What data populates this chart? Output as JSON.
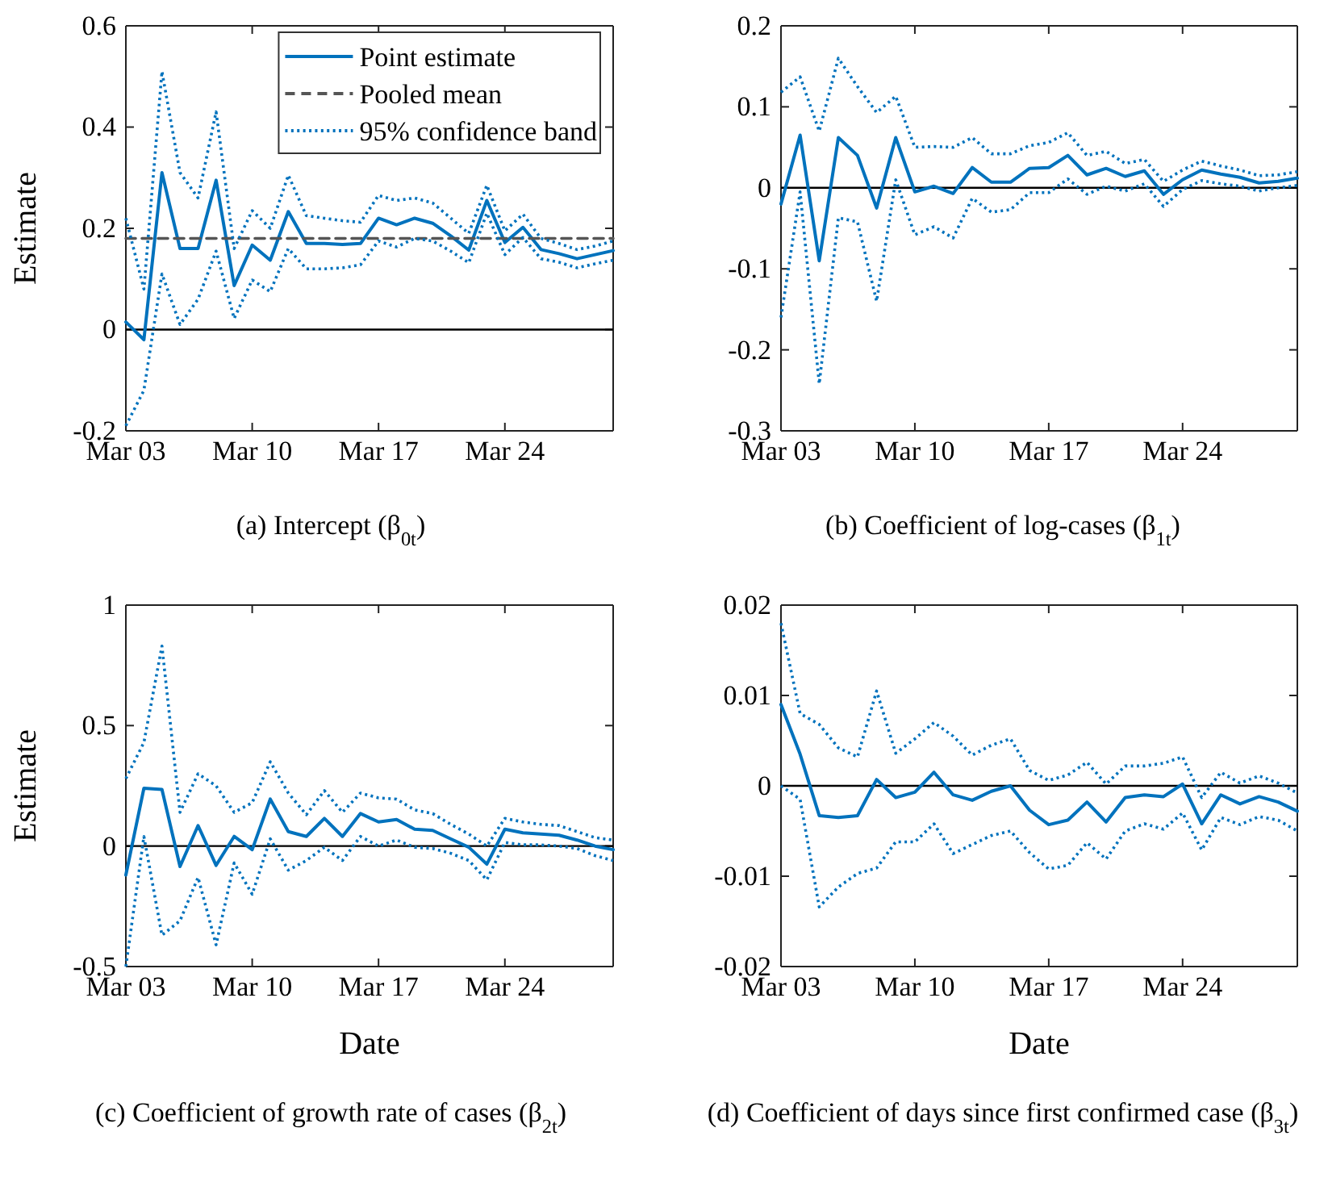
{
  "chart_data": [
    {
      "type": "line",
      "title": "(a) Intercept (β$_{0t}$)",
      "ylabel": "Estimate",
      "xlim": [
        "--03-03",
        "--03-30"
      ],
      "xticks": [
        {
          "value": "--03-03",
          "label": "Mar 03"
        },
        {
          "value": "--03-10",
          "label": "Mar 10"
        },
        {
          "value": "--03-17",
          "label": "Mar 17"
        },
        {
          "value": "--03-24",
          "label": "Mar 24"
        }
      ],
      "ylim": [
        -0.2,
        0.6
      ],
      "yticks": [
        {
          "value": -0.2,
          "label": "-0.2"
        },
        0,
        0.2,
        0.4,
        0.6
      ],
      "grid": false,
      "legend": "top right",
      "ref_lines": [
        {
          "axis": "y",
          "value": 0,
          "color": "#000000"
        }
      ],
      "x": [
        "--03-03",
        "--03-04",
        "--03-05",
        "--03-06",
        "--03-07",
        "--03-08",
        "--03-09",
        "--03-10",
        "--03-11",
        "--03-12",
        "--03-13",
        "--03-14",
        "--03-15",
        "--03-16",
        "--03-17",
        "--03-18",
        "--03-19",
        "--03-20",
        "--03-21",
        "--03-22",
        "--03-23",
        "--03-24",
        "--03-25",
        "--03-26",
        "--03-27",
        "--03-28",
        "--03-29",
        "--03-30"
      ],
      "series": [
        {
          "name": "Point estimate",
          "color": "#0072bd",
          "line_style": "solid",
          "values": [
            0.015,
            -0.02,
            0.31,
            0.16,
            0.16,
            0.295,
            0.087,
            0.167,
            0.137,
            0.233,
            0.17,
            0.17,
            0.168,
            0.17,
            0.22,
            0.207,
            0.22,
            0.21,
            0.185,
            0.157,
            0.255,
            0.172,
            0.202,
            0.158,
            0.15,
            0.14,
            0.148,
            0.156
          ]
        },
        {
          "name": "Pooled mean",
          "color": "#555555",
          "line_style": "dashed",
          "x": [
            "--03-03",
            "--03-30"
          ],
          "values": [
            0.18,
            0.18
          ]
        },
        {
          "name": "95% confidence band",
          "color": "#0072bd",
          "line_style": "dotted",
          "values": [
            0.22,
            0.08,
            0.51,
            0.31,
            0.26,
            0.43,
            0.16,
            0.235,
            0.2,
            0.305,
            0.225,
            0.22,
            0.215,
            0.212,
            0.265,
            0.255,
            0.26,
            0.25,
            0.22,
            0.19,
            0.285,
            0.195,
            0.228,
            0.18,
            0.17,
            0.158,
            0.165,
            0.175
          ]
        },
        {
          "color": "#0072bd",
          "line_style": "dotted",
          "values": [
            -0.19,
            -0.12,
            0.11,
            0.01,
            0.06,
            0.155,
            0.022,
            0.098,
            0.075,
            0.16,
            0.12,
            0.12,
            0.122,
            0.128,
            0.175,
            0.163,
            0.18,
            0.175,
            0.155,
            0.132,
            0.23,
            0.148,
            0.182,
            0.14,
            0.133,
            0.122,
            0.13,
            0.137
          ]
        }
      ]
    },
    {
      "type": "line",
      "title": "(b) Coefficient of log-cases (β$_{1t}$)",
      "xlim": [
        "--03-03",
        "--03-30"
      ],
      "xticks": [
        {
          "value": "--03-03",
          "label": "Mar 03"
        },
        {
          "value": "--03-10",
          "label": "Mar 10"
        },
        {
          "value": "--03-17",
          "label": "Mar 17"
        },
        {
          "value": "--03-24",
          "label": "Mar 24"
        }
      ],
      "ylim": [
        -0.3,
        0.2
      ],
      "yticks": [
        {
          "value": -0.3,
          "label": "-0.3"
        },
        {
          "value": -0.2,
          "label": "-0.2"
        },
        {
          "value": -0.1,
          "label": "-0.1"
        },
        0,
        0.1,
        0.2
      ],
      "grid": false,
      "legend": false,
      "ref_lines": [
        {
          "axis": "y",
          "value": 0,
          "color": "#000000"
        }
      ],
      "x": [
        "--03-03",
        "--03-04",
        "--03-05",
        "--03-06",
        "--03-07",
        "--03-08",
        "--03-09",
        "--03-10",
        "--03-11",
        "--03-12",
        "--03-13",
        "--03-14",
        "--03-15",
        "--03-16",
        "--03-17",
        "--03-18",
        "--03-19",
        "--03-20",
        "--03-21",
        "--03-22",
        "--03-23",
        "--03-24",
        "--03-25",
        "--03-26",
        "--03-27",
        "--03-28",
        "--03-29",
        "--03-30"
      ],
      "series": [
        {
          "color": "#0072bd",
          "line_style": "solid",
          "values": [
            -0.02,
            0.065,
            -0.09,
            0.062,
            0.04,
            -0.025,
            0.062,
            -0.005,
            0.002,
            -0.007,
            0.025,
            0.007,
            0.007,
            0.024,
            0.025,
            0.04,
            0.016,
            0.024,
            0.014,
            0.021,
            -0.008,
            0.01,
            0.022,
            0.017,
            0.013,
            0.006,
            0.008,
            0.012
          ]
        },
        {
          "color": "#0072bd",
          "line_style": "dotted",
          "values": [
            0.118,
            0.137,
            0.07,
            0.16,
            0.125,
            0.093,
            0.113,
            0.05,
            0.051,
            0.05,
            0.062,
            0.042,
            0.042,
            0.052,
            0.056,
            0.068,
            0.04,
            0.045,
            0.03,
            0.035,
            0.008,
            0.022,
            0.033,
            0.027,
            0.022,
            0.015,
            0.016,
            0.02
          ]
        },
        {
          "color": "#0072bd",
          "line_style": "dotted",
          "values": [
            -0.16,
            -0.005,
            -0.242,
            -0.037,
            -0.042,
            -0.14,
            0.01,
            -0.058,
            -0.048,
            -0.062,
            -0.013,
            -0.03,
            -0.027,
            -0.006,
            -0.006,
            0.011,
            -0.008,
            0.002,
            -0.004,
            0.005,
            -0.023,
            -0.002,
            0.009,
            0.005,
            0.002,
            -0.004,
            0.0,
            0.003
          ]
        }
      ]
    },
    {
      "type": "line",
      "title": "(c) Coefficient of growth rate of cases (β$_{2t}$)",
      "xlabel": "Date",
      "ylabel": "Estimate",
      "xlim": [
        "--03-03",
        "--03-30"
      ],
      "xticks": [
        {
          "value": "--03-03",
          "label": "Mar 03"
        },
        {
          "value": "--03-10",
          "label": "Mar 10"
        },
        {
          "value": "--03-17",
          "label": "Mar 17"
        },
        {
          "value": "--03-24",
          "label": "Mar 24"
        }
      ],
      "ylim": [
        -0.5,
        1
      ],
      "yticks": [
        {
          "value": -0.5,
          "label": "-0.5"
        },
        0,
        0.5,
        1
      ],
      "grid": false,
      "legend": false,
      "ref_lines": [
        {
          "axis": "y",
          "value": 0,
          "color": "#000000"
        }
      ],
      "x": [
        "--03-03",
        "--03-04",
        "--03-05",
        "--03-06",
        "--03-07",
        "--03-08",
        "--03-09",
        "--03-10",
        "--03-11",
        "--03-12",
        "--03-13",
        "--03-14",
        "--03-15",
        "--03-16",
        "--03-17",
        "--03-18",
        "--03-19",
        "--03-20",
        "--03-21",
        "--03-22",
        "--03-23",
        "--03-24",
        "--03-25",
        "--03-26",
        "--03-27",
        "--03-28",
        "--03-29",
        "--03-30"
      ],
      "series": [
        {
          "color": "#0072bd",
          "line_style": "solid",
          "values": [
            -0.12,
            0.24,
            0.235,
            -0.085,
            0.085,
            -0.08,
            0.04,
            -0.015,
            0.195,
            0.06,
            0.04,
            0.115,
            0.04,
            0.135,
            0.1,
            0.11,
            0.07,
            0.065,
            0.03,
            -0.005,
            -0.075,
            0.07,
            0.055,
            0.05,
            0.045,
            0.025,
            0.0,
            -0.015
          ]
        },
        {
          "color": "#0072bd",
          "line_style": "dotted",
          "values": [
            0.28,
            0.43,
            0.83,
            0.14,
            0.3,
            0.25,
            0.14,
            0.18,
            0.35,
            0.22,
            0.13,
            0.23,
            0.14,
            0.22,
            0.2,
            0.195,
            0.15,
            0.135,
            0.09,
            0.05,
            0.0,
            0.115,
            0.1,
            0.09,
            0.085,
            0.06,
            0.035,
            0.025
          ]
        },
        {
          "color": "#0072bd",
          "line_style": "dotted",
          "values": [
            -0.5,
            0.04,
            -0.37,
            -0.31,
            -0.13,
            -0.41,
            -0.07,
            -0.2,
            0.03,
            -0.1,
            -0.06,
            -0.005,
            -0.06,
            0.04,
            0.0,
            0.025,
            -0.005,
            -0.01,
            -0.03,
            -0.06,
            -0.14,
            0.015,
            0.005,
            0.005,
            0.0,
            -0.01,
            -0.04,
            -0.06
          ]
        }
      ]
    },
    {
      "type": "line",
      "title": "(d) Coefficient of days since first confirmed case (β$_{3t}$)",
      "xlabel": "Date",
      "xlim": [
        "--03-03",
        "--03-30"
      ],
      "xticks": [
        {
          "value": "--03-03",
          "label": "Mar 03"
        },
        {
          "value": "--03-10",
          "label": "Mar 10"
        },
        {
          "value": "--03-17",
          "label": "Mar 17"
        },
        {
          "value": "--03-24",
          "label": "Mar 24"
        }
      ],
      "ylim": [
        -0.02,
        0.02
      ],
      "yticks": [
        {
          "value": -0.02,
          "label": "-0.02"
        },
        {
          "value": -0.01,
          "label": "-0.01"
        },
        0,
        0.01,
        0.02
      ],
      "grid": false,
      "legend": false,
      "ref_lines": [
        {
          "axis": "y",
          "value": 0,
          "color": "#000000"
        }
      ],
      "x": [
        "--03-03",
        "--03-04",
        "--03-05",
        "--03-06",
        "--03-07",
        "--03-08",
        "--03-09",
        "--03-10",
        "--03-11",
        "--03-12",
        "--03-13",
        "--03-14",
        "--03-15",
        "--03-16",
        "--03-17",
        "--03-18",
        "--03-19",
        "--03-20",
        "--03-21",
        "--03-22",
        "--03-23",
        "--03-24",
        "--03-25",
        "--03-26",
        "--03-27",
        "--03-28",
        "--03-29",
        "--03-30"
      ],
      "series": [
        {
          "color": "#0072bd",
          "line_style": "solid",
          "values": [
            0.009,
            0.0035,
            -0.0033,
            -0.0035,
            -0.0033,
            0.0007,
            -0.0013,
            -0.0007,
            0.0015,
            -0.001,
            -0.0016,
            -0.0006,
            0.0,
            -0.0027,
            -0.0043,
            -0.0038,
            -0.0018,
            -0.004,
            -0.0013,
            -0.001,
            -0.0012,
            0.0002,
            -0.0042,
            -0.001,
            -0.002,
            -0.0012,
            -0.0018,
            -0.0028
          ]
        },
        {
          "color": "#0072bd",
          "line_style": "dotted",
          "values": [
            0.018,
            0.008,
            0.0068,
            0.0042,
            0.0032,
            0.0105,
            0.0036,
            0.0052,
            0.007,
            0.0055,
            0.0034,
            0.0045,
            0.0052,
            0.0017,
            0.0006,
            0.0012,
            0.0026,
            0.0002,
            0.0022,
            0.0022,
            0.0025,
            0.0032,
            -0.0013,
            0.0015,
            0.0003,
            0.0011,
            0.0003,
            -0.0008
          ]
        },
        {
          "color": "#0072bd",
          "line_style": "dotted",
          "values": [
            0.0,
            -0.0015,
            -0.0134,
            -0.0112,
            -0.0097,
            -0.0091,
            -0.0062,
            -0.0062,
            -0.0042,
            -0.0075,
            -0.0065,
            -0.0055,
            -0.005,
            -0.0074,
            -0.0092,
            -0.0088,
            -0.0063,
            -0.0081,
            -0.005,
            -0.0042,
            -0.0048,
            -0.003,
            -0.0071,
            -0.0035,
            -0.0043,
            -0.0034,
            -0.0038,
            -0.005
          ]
        }
      ]
    }
  ]
}
